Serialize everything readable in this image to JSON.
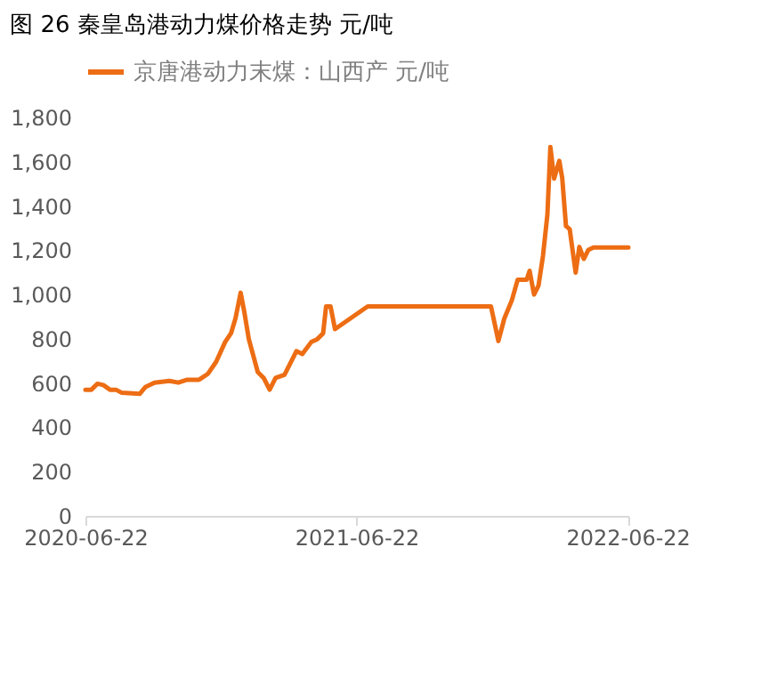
{
  "chart_data": {
    "type": "line",
    "title": "图 26 秦皇岛港动力煤价格走势 元/吨",
    "x": [
      "2020-06-22",
      "2020-06-30",
      "2020-07-08",
      "2020-07-16",
      "2020-07-25",
      "2020-08-02",
      "2020-08-10",
      "2020-09-03",
      "2020-09-11",
      "2020-09-23",
      "2020-10-13",
      "2020-10-25",
      "2020-11-06",
      "2020-11-22",
      "2020-12-04",
      "2020-12-15",
      "2020-12-27",
      "2021-01-04",
      "2021-01-10",
      "2021-01-17",
      "2021-01-22",
      "2021-01-28",
      "2021-02-09",
      "2021-02-17",
      "2021-02-25",
      "2021-03-05",
      "2021-03-17",
      "2021-03-25",
      "2021-04-02",
      "2021-04-10",
      "2021-04-22",
      "2021-04-30",
      "2021-05-08",
      "2021-05-12",
      "2021-05-18",
      "2021-05-24",
      "2021-07-07",
      "2021-12-20",
      "2021-12-30",
      "2022-01-07",
      "2022-01-17",
      "2022-01-25",
      "2022-02-06",
      "2022-02-10",
      "2022-02-16",
      "2022-02-22",
      "2022-02-28",
      "2022-03-06",
      "2022-03-10",
      "2022-03-15",
      "2022-03-22",
      "2022-03-26",
      "2022-03-31",
      "2022-04-05",
      "2022-04-13",
      "2022-04-18",
      "2022-04-24",
      "2022-04-30",
      "2022-05-07",
      "2022-06-23"
    ],
    "series": [
      {
        "name": "京唐港动力末煤：山西产 元/吨",
        "color": "#ed6d14",
        "values": [
          570,
          570,
          597,
          591,
          570,
          570,
          556,
          551,
          583,
          602,
          610,
          602,
          615,
          615,
          642,
          696,
          785,
          825,
          892,
          1008,
          919,
          798,
          650,
          623,
          570,
          623,
          637,
          691,
          744,
          731,
          785,
          798,
          825,
          946,
          946,
          844,
          946,
          946,
          790,
          892,
          973,
          1067,
          1067,
          1107,
          1000,
          1040,
          1174,
          1362,
          1666,
          1524,
          1604,
          1524,
          1309,
          1295,
          1099,
          1215,
          1161,
          1201,
          1212,
          1212
        ]
      }
    ],
    "ylim": [
      0,
      1800
    ],
    "yticks": [
      {
        "value": 0,
        "label": "0"
      },
      {
        "value": 200,
        "label": "200"
      },
      {
        "value": 400,
        "label": "400"
      },
      {
        "value": 600,
        "label": "600"
      },
      {
        "value": 800,
        "label": "800"
      },
      {
        "value": 1000,
        "label": "1,000"
      },
      {
        "value": 1200,
        "label": "1,200"
      },
      {
        "value": 1400,
        "label": "1,400"
      },
      {
        "value": 1600,
        "label": "1,600"
      },
      {
        "value": 1800,
        "label": "1,800"
      }
    ],
    "xlim": [
      "2020-06-22",
      "2022-06-23"
    ],
    "xticks": [
      "2020-06-22",
      "2021-06-22",
      "2022-06-22"
    ],
    "grid": false,
    "legend": "top",
    "marker": "none",
    "line_style": "solid"
  }
}
